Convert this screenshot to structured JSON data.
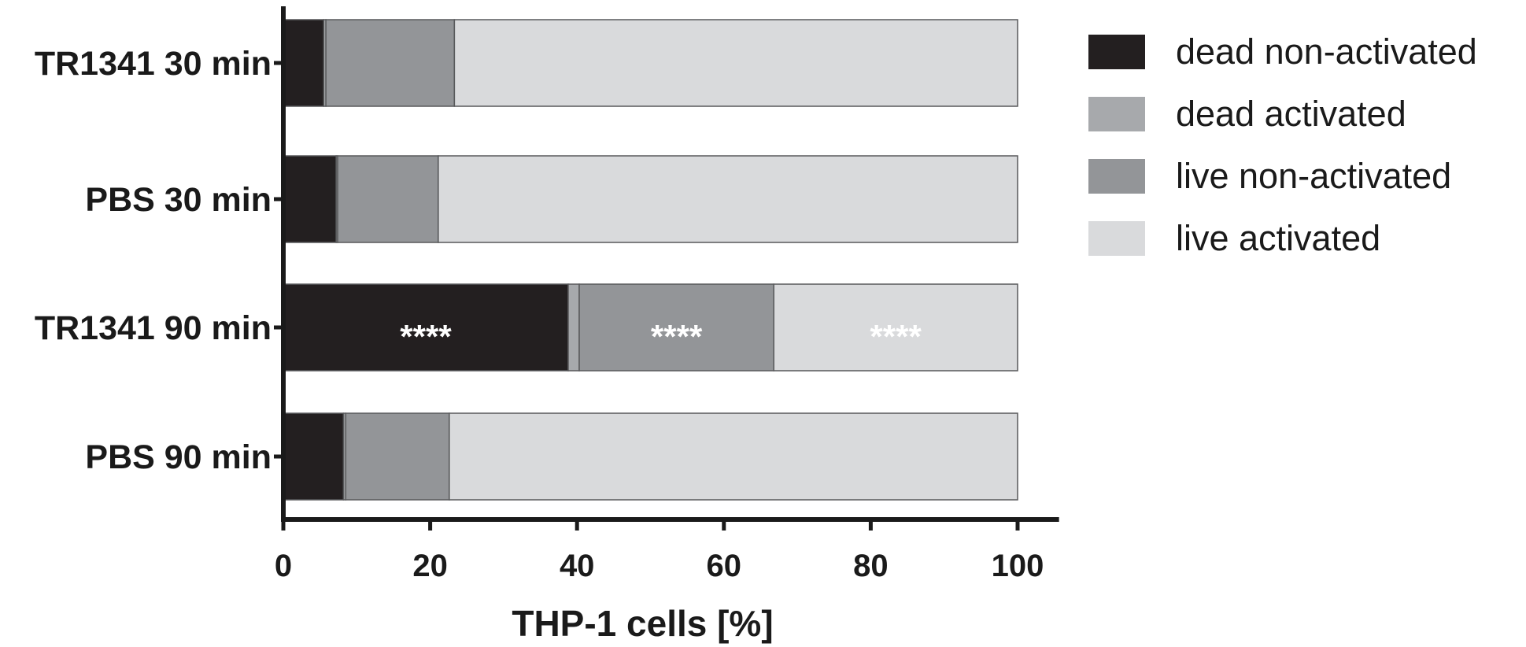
{
  "chart_data": {
    "type": "bar",
    "stacked": true,
    "orientation": "horizontal",
    "categories": [
      "TR1341 30 min",
      "PBS 30 min",
      "TR1341 90 min",
      "PBS 90 min"
    ],
    "series": [
      {
        "name": "dead non-activated",
        "color": "#231f20",
        "values": [
          5.5,
          7.2,
          38.8,
          8.2
        ]
      },
      {
        "name": "dead activated",
        "color": "#a7a9ac",
        "values": [
          0.3,
          0.2,
          1.5,
          0.3
        ]
      },
      {
        "name": "live non-activated",
        "color": "#939598",
        "values": [
          17.5,
          13.7,
          26.5,
          14.1
        ]
      },
      {
        "name": "live activated",
        "color": "#d9dadc",
        "values": [
          76.7,
          78.9,
          33.2,
          77.4
        ]
      }
    ],
    "xlabel": "THP-1 cells [%]",
    "ylabel": "",
    "xlim": [
      0,
      105
    ],
    "xticks": [
      0,
      20,
      40,
      60,
      80,
      100
    ],
    "annotations": [
      {
        "category": "TR1341 90 min",
        "series": "dead non-activated",
        "text": "****",
        "color": "#ffffff"
      },
      {
        "category": "TR1341 90 min",
        "series": "live non-activated",
        "text": "****",
        "color": "#ffffff"
      },
      {
        "category": "TR1341 90 min",
        "series": "live activated",
        "text": "****",
        "color": "#ffffff"
      }
    ],
    "legend_position": "right",
    "grid": false
  }
}
